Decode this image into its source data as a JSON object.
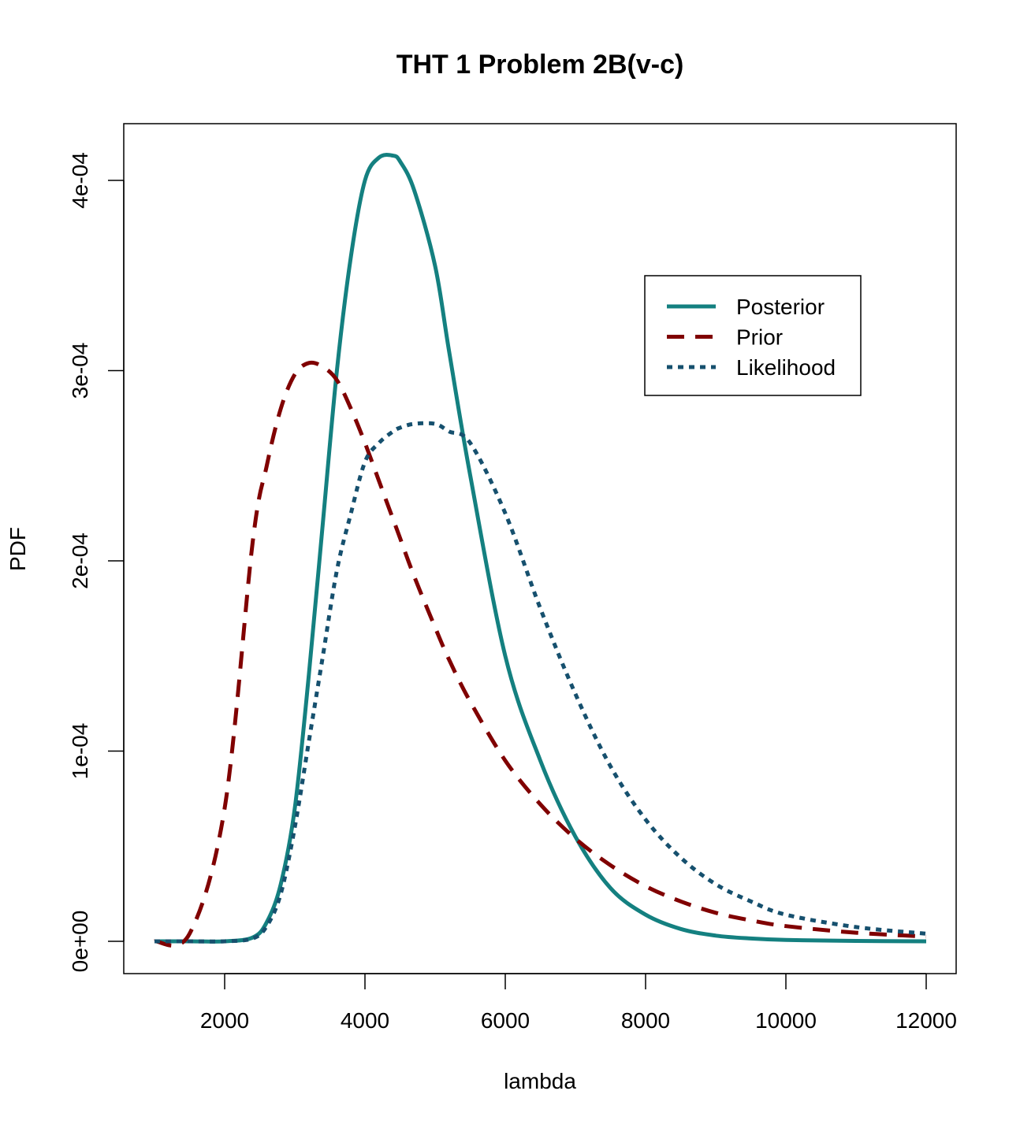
{
  "chart_data": {
    "type": "line",
    "title": "THT 1 Problem 2B(v-c)",
    "xlabel": "lambda",
    "ylabel": "PDF",
    "xlim": [
      1000,
      12000
    ],
    "ylim": [
      0,
      0.00042
    ],
    "xticks": [
      2000,
      4000,
      6000,
      8000,
      10000,
      12000
    ],
    "xtick_labels": [
      "2000",
      "4000",
      "6000",
      "8000",
      "10000",
      "12000"
    ],
    "yticks": [
      0,
      0.0001,
      0.0002,
      0.0003,
      0.0004
    ],
    "ytick_labels": [
      "0e+00",
      "1e-04",
      "2e-04",
      "3e-04",
      "4e-04"
    ],
    "grid": false,
    "legend_position": "top-right",
    "x": [
      1000,
      1500,
      2000,
      2400,
      2600,
      2800,
      3000,
      3200,
      3400,
      3600,
      3800,
      4000,
      4200,
      4400,
      4500,
      4700,
      5000,
      5200,
      5500,
      6000,
      6500,
      7000,
      7500,
      8000,
      8500,
      9000,
      9500,
      10000,
      11000,
      12000
    ],
    "series": [
      {
        "name": "Posterior",
        "color": "#148080",
        "dash": "solid",
        "values": [
          0,
          0,
          0,
          2e-06,
          1e-05,
          3e-05,
          7e-05,
          0.00014,
          0.00022,
          0.0003,
          0.00036,
          0.0004,
          0.000412,
          0.000413,
          0.00041,
          0.000395,
          0.000355,
          0.00031,
          0.000245,
          0.00015,
          9.5e-05,
          5.5e-05,
          2.8e-05,
          1.4e-05,
          6.5e-06,
          3e-06,
          1.5e-06,
          7e-07,
          2e-07,
          0
        ]
      },
      {
        "name": "Prior",
        "color": "#800000",
        "dash": "dashed",
        "values": [
          0,
          4e-06,
          7e-05,
          0.00021,
          0.00025,
          0.00028,
          0.000298,
          0.000304,
          0.000302,
          0.000295,
          0.00028,
          0.000262,
          0.000242,
          0.000222,
          0.000212,
          0.000192,
          0.000165,
          0.000148,
          0.000126,
          9.5e-05,
          7.2e-05,
          5.4e-05,
          4e-05,
          2.9e-05,
          2.1e-05,
          1.5e-05,
          1.1e-05,
          8e-06,
          4.5e-06,
          2.5e-06
        ]
      },
      {
        "name": "Likelihood",
        "color": "#16506e",
        "dash": "dotted",
        "values": [
          0,
          0,
          0,
          1.5e-06,
          8e-06,
          2.5e-05,
          6e-05,
          0.000105,
          0.00015,
          0.000195,
          0.000225,
          0.000252,
          0.000262,
          0.000268,
          0.00027,
          0.000272,
          0.000272,
          0.000268,
          0.000262,
          0.000225,
          0.000175,
          0.00013,
          9.2e-05,
          6.4e-05,
          4.4e-05,
          3e-05,
          2.1e-05,
          1.4e-05,
          7.5e-06,
          4e-06
        ]
      }
    ]
  }
}
